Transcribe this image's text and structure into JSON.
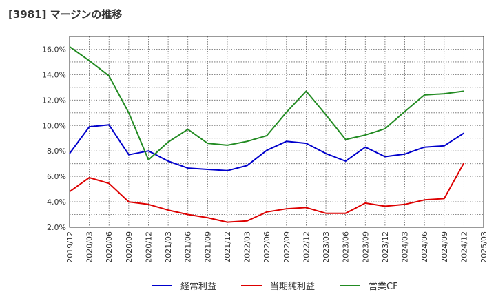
{
  "chart_data": {
    "type": "line",
    "title": "[3981]  マージンの推移",
    "xlabel": "",
    "ylabel": "",
    "ylim": [
      2.0,
      17.0
    ],
    "y_ticks": [
      "2.0%",
      "4.0%",
      "6.0%",
      "8.0%",
      "10.0%",
      "12.0%",
      "14.0%",
      "16.0%"
    ],
    "y_tick_values": [
      2,
      4,
      6,
      8,
      10,
      12,
      14,
      16
    ],
    "grid": true,
    "legend_position": "bottom",
    "categories": [
      "2019/12",
      "2020/03",
      "2020/06",
      "2020/09",
      "2020/12",
      "2021/03",
      "2021/06",
      "2021/09",
      "2021/12",
      "2022/03",
      "2022/06",
      "2022/09",
      "2022/12",
      "2023/03",
      "2023/06",
      "2023/09",
      "2023/12",
      "2024/03",
      "2024/06",
      "2024/09",
      "2024/12",
      "2025/03"
    ],
    "series": [
      {
        "name": "経常利益",
        "color": "#0000cc",
        "values": [
          7.8,
          9.9,
          10.05,
          7.7,
          8.0,
          7.2,
          6.65,
          6.55,
          6.45,
          6.85,
          8.05,
          8.75,
          8.6,
          7.8,
          7.2,
          8.3,
          7.55,
          7.75,
          8.3,
          8.4,
          9.4,
          null
        ]
      },
      {
        "name": "当期純利益",
        "color": "#dd0000",
        "values": [
          4.8,
          5.9,
          5.45,
          4.0,
          3.8,
          3.35,
          3.0,
          2.75,
          2.4,
          2.5,
          3.2,
          3.45,
          3.55,
          3.1,
          3.1,
          3.9,
          3.65,
          3.8,
          4.15,
          4.25,
          7.05,
          null
        ]
      },
      {
        "name": "営業CF",
        "color": "#228b22",
        "values": [
          16.2,
          15.1,
          13.9,
          11.0,
          7.3,
          8.7,
          9.7,
          8.6,
          8.45,
          8.75,
          9.2,
          11.05,
          12.7,
          10.85,
          8.9,
          9.25,
          9.75,
          11.1,
          12.4,
          12.5,
          12.7,
          null
        ]
      }
    ]
  }
}
